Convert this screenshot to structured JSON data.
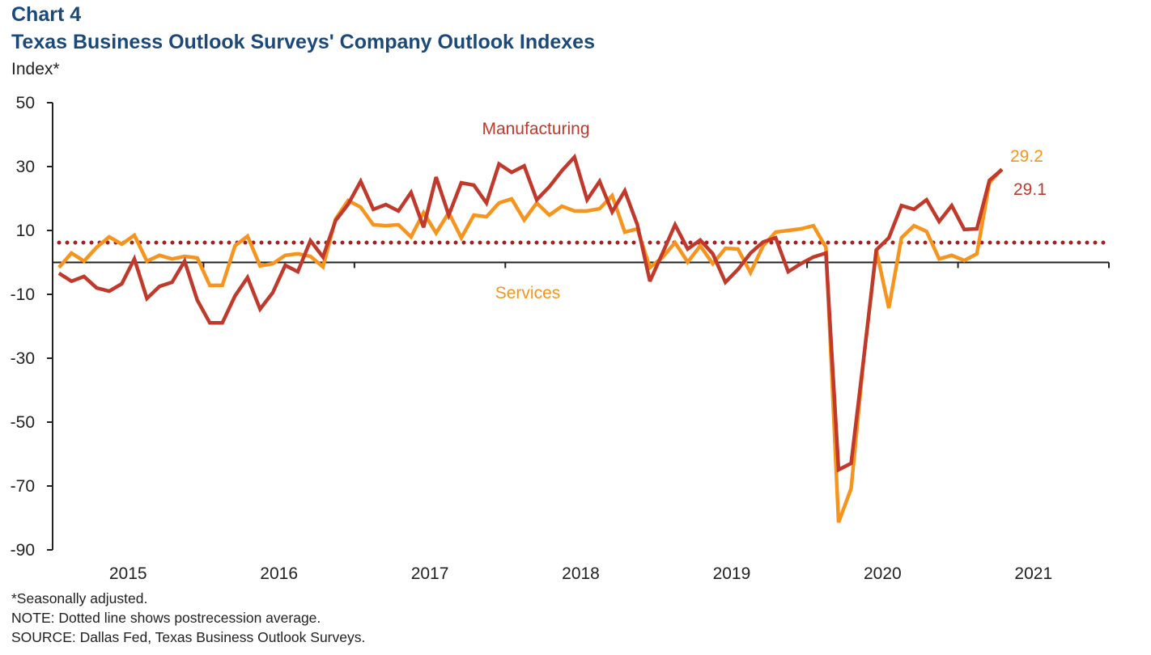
{
  "header": {
    "chart_label": "Chart 4",
    "title": "Texas Business Outlook Surveys' Company Outlook Indexes",
    "y_unit": "Index*"
  },
  "footnotes": [
    "*Seasonally adjusted.",
    "NOTE: Dotted line shows postrecession average.",
    "SOURCE: Dallas Fed, Texas Business Outlook Surveys."
  ],
  "colors": {
    "manufacturing": "#C0392B",
    "services": "#F7941D",
    "reference_line": "#A3201F",
    "title": "#1B4A7A"
  },
  "chart_data": {
    "type": "line",
    "title": "Texas Business Outlook Surveys' Company Outlook Indexes",
    "ylabel": "Index*",
    "xlabel": "",
    "ylim": [
      -90,
      50
    ],
    "y_ticks": [
      50,
      30,
      10,
      -10,
      -30,
      -50,
      -70,
      -90
    ],
    "x_start": "2015-01",
    "x_end_axis": "2021-12",
    "x_tick_labels": [
      "2015",
      "2016",
      "2017",
      "2018",
      "2019",
      "2020",
      "2021"
    ],
    "frequency": "monthly",
    "grid": false,
    "zero_line": true,
    "reference_line": {
      "label": "Postrecession average",
      "value": 6.2,
      "style": "dotted"
    },
    "series": [
      {
        "name": "Manufacturing",
        "label_position": "top-center",
        "end_label": "29.1",
        "values": [
          -3.4,
          -5.9,
          -4.4,
          -8.0,
          -9.0,
          -6.7,
          1.1,
          -11.3,
          -7.5,
          -6.2,
          0.4,
          -11.8,
          -18.9,
          -18.9,
          -10.5,
          -4.7,
          -14.6,
          -9.5,
          -0.9,
          -2.9,
          6.8,
          1.7,
          13.1,
          18.2,
          25.4,
          16.6,
          18.1,
          16.1,
          21.9,
          11.0,
          26.7,
          14.8,
          24.9,
          24.2,
          18.6,
          30.8,
          28.2,
          30.2,
          19.6,
          23.7,
          28.7,
          33.0,
          19.6,
          25.4,
          15.8,
          22.4,
          11.8,
          -5.9,
          2.9,
          11.8,
          4.2,
          7.0,
          2.7,
          -6.2,
          -2.2,
          2.9,
          6.4,
          7.7,
          -2.9,
          -0.4,
          1.7,
          2.9,
          -64.9,
          -62.9,
          -30.0,
          3.9,
          7.7,
          17.8,
          16.6,
          19.6,
          12.8,
          17.8,
          10.3,
          10.5,
          25.7,
          29.1
        ]
      },
      {
        "name": "Services",
        "label_position": "bottom-center",
        "end_label": "29.2",
        "values": [
          -1.6,
          2.9,
          0.4,
          4.7,
          8.0,
          5.7,
          8.5,
          0.4,
          2.2,
          1.1,
          1.9,
          1.4,
          -7.2,
          -7.2,
          5.2,
          8.2,
          -1.1,
          -0.4,
          2.2,
          2.7,
          1.9,
          -1.4,
          13.6,
          19.4,
          17.3,
          11.8,
          11.5,
          11.8,
          8.0,
          15.6,
          9.2,
          15.6,
          7.7,
          14.8,
          14.3,
          18.6,
          19.9,
          13.3,
          18.6,
          14.8,
          17.6,
          16.1,
          16.1,
          16.8,
          20.9,
          9.5,
          10.5,
          -1.6,
          1.6,
          6.2,
          0.1,
          5.2,
          -0.4,
          4.4,
          4.2,
          -3.2,
          5.2,
          9.5,
          10.0,
          10.5,
          11.5,
          4.7,
          -81.4,
          -70.8,
          -30.0,
          3.9,
          -14.3,
          7.7,
          11.5,
          9.7,
          1.1,
          2.2,
          0.6,
          2.7,
          25.0,
          29.2
        ]
      }
    ]
  }
}
